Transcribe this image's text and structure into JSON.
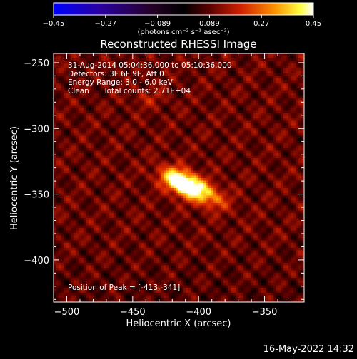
{
  "chart_data": {
    "type": "heatmap",
    "title": "Reconstructed RHESSI Image",
    "xlabel": "Heliocentric X (arcsec)",
    "ylabel": "Heliocentric Y (arcsec)",
    "xlim": [
      -510,
      -320
    ],
    "ylim": [
      -432,
      -243
    ],
    "x_ticks": [
      -500,
      -450,
      -400,
      -350
    ],
    "y_ticks": [
      -250,
      -300,
      -350,
      -400
    ],
    "colorbar": {
      "label": "(photons cm⁻² s⁻¹ asec⁻²)",
      "range": [
        -0.45,
        0.45
      ],
      "ticks": [
        "-0.45",
        "-0.27",
        "-0.089",
        "0.089",
        "0.27",
        "0.45"
      ]
    },
    "annotations": {
      "time_range": "31-Aug-2014 05:04:36.000 to 05:10:36.000",
      "detectors": "Detectors: 3F 6F 9F, Att 0",
      "energy_range": "Energy Range: 3.0 - 6.0 keV",
      "method": "Clean",
      "total_counts": "Total counts: 2.71E+04",
      "peak_position": "Position of Peak = [-413,-341]"
    },
    "sources": [
      {
        "x": -413,
        "y": -341,
        "amplitude": 0.45,
        "sigma_x": 11,
        "sigma_y": 6,
        "angle": -25
      },
      {
        "x": -395,
        "y": -350,
        "amplitude": 0.22,
        "sigma_x": 12,
        "sigma_y": 6,
        "angle": -25
      },
      {
        "x": -438,
        "y": -277,
        "amplitude": 0.06,
        "sigma_x": 9,
        "sigma_y": 5,
        "angle": 0
      }
    ],
    "grid": false,
    "legend": "colorbar-top"
  },
  "footer": {
    "date_stamp": "16-May-2022 14:32"
  },
  "colors": {
    "background": "#000000",
    "axis": "#ffffff",
    "colormap": [
      "#0000ff",
      "#4b0082",
      "#000000",
      "#8b0000",
      "#ff4500",
      "#ffa500",
      "#ffff00",
      "#ffffff"
    ]
  }
}
